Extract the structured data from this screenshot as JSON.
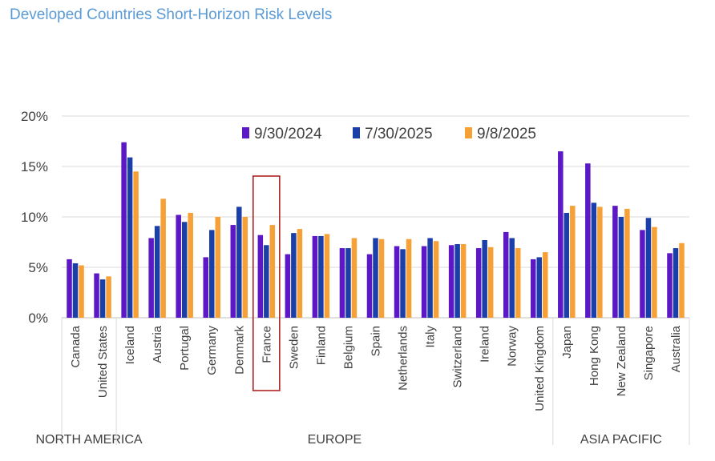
{
  "title": "Developed Countries Short-Horizon Risk Levels",
  "colors": {
    "series": [
      "#5b18c4",
      "#1a3fa8",
      "#f7a035"
    ],
    "highlight": "#b22222",
    "grid": "#d9d9d9",
    "title": "#5b9bd5"
  },
  "chart_data": {
    "type": "bar",
    "title": "Developed Countries Short-Horizon Risk Levels",
    "ylim": [
      0,
      20
    ],
    "yticks": [
      "0%",
      "5%",
      "10%",
      "15%",
      "20%"
    ],
    "grid": true,
    "legend_position": "top-center",
    "categories": [
      "Canada",
      "United States",
      "Iceland",
      "Austria",
      "Portugal",
      "Germany",
      "Denmark",
      "France",
      "Sweden",
      "Finland",
      "Belgium",
      "Spain",
      "Netherlands",
      "Italy",
      "Switzerland",
      "Ireland",
      "Norway",
      "United Kingdom",
      "Japan",
      "Hong Kong",
      "New Zealand",
      "Singapore",
      "Australia"
    ],
    "groups": [
      {
        "label": "NORTH AMERICA",
        "count": 2
      },
      {
        "label": "EUROPE",
        "count": 16
      },
      {
        "label": "ASIA PACIFIC",
        "count": 5
      }
    ],
    "highlighted_category": "France",
    "series": [
      {
        "name": "9/30/2024",
        "values": [
          5.8,
          4.4,
          17.4,
          7.9,
          10.2,
          6.0,
          9.2,
          8.2,
          6.3,
          8.1,
          6.9,
          6.3,
          7.1,
          7.1,
          7.2,
          6.9,
          8.5,
          5.8,
          16.5,
          15.3,
          11.1,
          8.7,
          6.4
        ]
      },
      {
        "name": "7/30/2025",
        "values": [
          5.4,
          3.8,
          15.9,
          9.1,
          9.5,
          8.7,
          11.0,
          7.2,
          8.4,
          8.1,
          6.9,
          7.9,
          6.8,
          7.9,
          7.3,
          7.7,
          7.9,
          6.0,
          10.4,
          11.4,
          10.0,
          9.9,
          6.9
        ]
      },
      {
        "name": "9/8/2025",
        "values": [
          5.2,
          4.1,
          14.5,
          11.8,
          10.4,
          10.0,
          10.0,
          9.2,
          8.8,
          8.3,
          7.9,
          7.8,
          7.8,
          7.6,
          7.3,
          7.0,
          6.9,
          6.5,
          11.1,
          11.0,
          10.8,
          9.0,
          7.4
        ]
      }
    ]
  }
}
